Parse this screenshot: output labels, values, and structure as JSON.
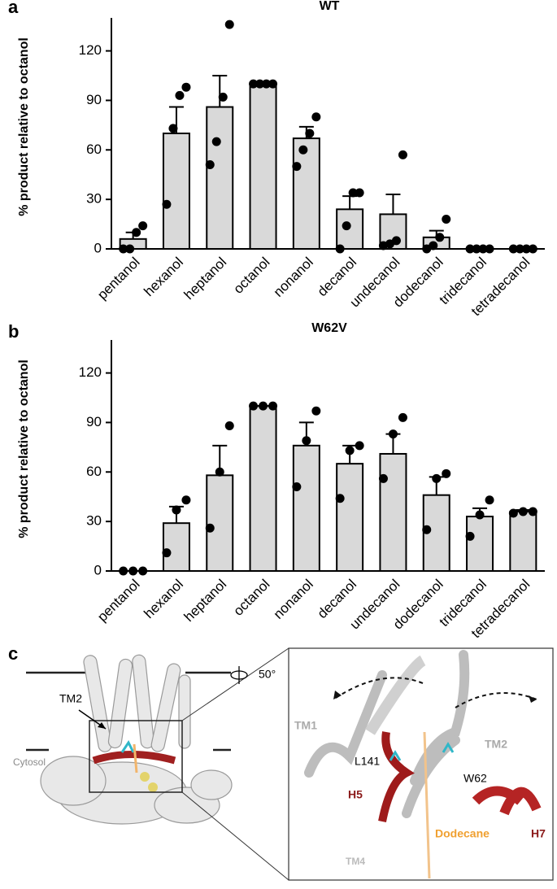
{
  "panel_labels": [
    "a",
    "b",
    "c"
  ],
  "chart_data": [
    {
      "type": "bar",
      "title": "WT",
      "y_label": "% product  relative to octanol",
      "categories": [
        "pentanol",
        "hexanol",
        "heptanol",
        "octanol",
        "nonanol",
        "decanol",
        "undecanol",
        "dodecanol",
        "tridecanol",
        "tetradecanol"
      ],
      "values": [
        6,
        70,
        86,
        100,
        67,
        24,
        21,
        7,
        0,
        0
      ],
      "errors": [
        4,
        16,
        19,
        0,
        7,
        8,
        12,
        4,
        0,
        0
      ],
      "points": [
        [
          0,
          0,
          10,
          14
        ],
        [
          27,
          73,
          93,
          98
        ],
        [
          51,
          65,
          92,
          136
        ],
        [
          100,
          100,
          100,
          100
        ],
        [
          50,
          60,
          70,
          80
        ],
        [
          0,
          14,
          34,
          34
        ],
        [
          2,
          3,
          5,
          57
        ],
        [
          0,
          2,
          7,
          18
        ],
        [
          0,
          0,
          0,
          0
        ],
        [
          0,
          0,
          0,
          0
        ]
      ],
      "color": "#d9d9d9",
      "ylim": [
        0,
        140
      ],
      "yticks": [
        0,
        30,
        60,
        90,
        120
      ]
    },
    {
      "type": "bar",
      "title": "W62V",
      "y_label": "% product  relative to octanol",
      "categories": [
        "pentanol",
        "hexanol",
        "heptanol",
        "octanol",
        "nonanol",
        "decanol",
        "undecanol",
        "dodecanol",
        "tridecanol",
        "tetradecanol"
      ],
      "values": [
        0,
        29,
        58,
        100,
        76,
        65,
        71,
        46,
        33,
        36
      ],
      "errors": [
        0,
        10,
        18,
        0,
        14,
        11,
        12,
        11,
        5,
        1
      ],
      "points": [
        [
          0,
          0,
          0
        ],
        [
          11,
          37,
          43
        ],
        [
          26,
          60,
          88
        ],
        [
          100,
          100,
          100
        ],
        [
          51,
          79,
          97
        ],
        [
          44,
          73,
          76
        ],
        [
          56,
          83,
          93
        ],
        [
          25,
          56,
          59
        ],
        [
          21,
          34,
          43
        ],
        [
          35,
          36,
          36
        ]
      ],
      "color": "#d9d9d9",
      "ylim": [
        0,
        140
      ],
      "yticks": [
        0,
        30,
        60,
        90,
        120
      ]
    }
  ],
  "panel_c": {
    "tm2_left": "TM2",
    "cytosol": "Cytosol",
    "rotation": "50°",
    "tm1": "TM1",
    "tm2": "TM2",
    "l141": "L141",
    "w62": "W62",
    "h5": "H5",
    "h7": "H7",
    "tm4": "TM4",
    "dodecane": "Dodecane"
  }
}
